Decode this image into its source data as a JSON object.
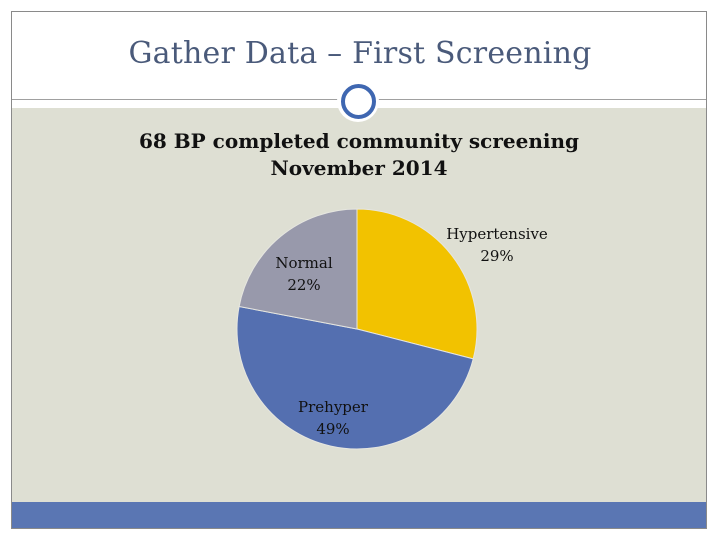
{
  "slide": {
    "title": "Gather Data – First Screening"
  },
  "colors": {
    "title_text": "#4a5a7a",
    "content_background": "#dedfd3",
    "bottom_bar": "#5a76b3",
    "ornament_ring": "#3f67b1"
  },
  "chart_data": {
    "type": "pie",
    "title_lines": [
      "68 BP completed community screening",
      "November 2014"
    ],
    "slices": [
      {
        "label": "Hypertensive",
        "value": 29,
        "display": "29%",
        "color": "#f2c200"
      },
      {
        "label": "Prehyper",
        "value": 49,
        "display": "49%",
        "color": "#546fb0"
      },
      {
        "label": "Normal",
        "value": 22,
        "display": "22%",
        "color": "#9899ab"
      }
    ],
    "start_angle": "12 o'clock",
    "direction": "clockwise",
    "legend": "none (data labels on slices)"
  }
}
